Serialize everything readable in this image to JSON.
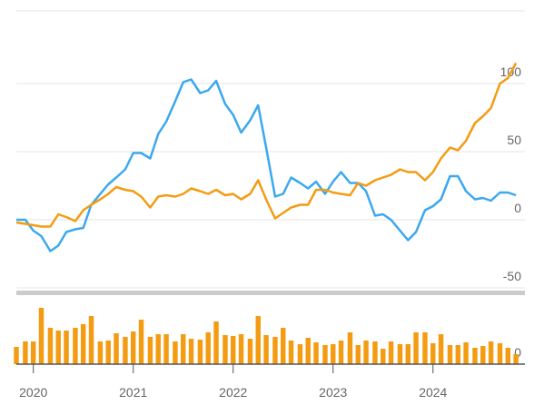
{
  "chart_data": [
    {
      "type": "line",
      "x": [
        2019.83,
        2019.92,
        2020,
        2020.08,
        2020.17,
        2020.25,
        2020.33,
        2020.42,
        2020.5,
        2020.58,
        2020.67,
        2020.75,
        2020.83,
        2020.92,
        2021,
        2021.08,
        2021.17,
        2021.25,
        2021.33,
        2021.42,
        2021.5,
        2021.58,
        2021.67,
        2021.75,
        2021.83,
        2021.92,
        2022,
        2022.08,
        2022.17,
        2022.25,
        2022.33,
        2022.42,
        2022.5,
        2022.58,
        2022.67,
        2022.75,
        2022.83,
        2022.92,
        2023,
        2023.08,
        2023.17,
        2023.25,
        2023.33,
        2023.42,
        2023.5,
        2023.58,
        2023.67,
        2023.75,
        2023.83,
        2023.92,
        2024,
        2024.08,
        2024.17,
        2024.25,
        2024.33,
        2024.42,
        2024.5,
        2024.58,
        2024.67,
        2024.75,
        2024.83
      ],
      "series": [
        {
          "color": "#3ba8f0",
          "values": [
            0,
            0,
            -8,
            -12,
            -23,
            -19,
            -9,
            -7,
            -6,
            11,
            19,
            26,
            31,
            37,
            49,
            49,
            45,
            63,
            72,
            87,
            101,
            103,
            93,
            95,
            102,
            85,
            77,
            64,
            73,
            84,
            53,
            17,
            19,
            31,
            27,
            23,
            28,
            19,
            28,
            35,
            27,
            27,
            21,
            3,
            4,
            0,
            -8,
            -15,
            -9,
            7,
            10,
            15,
            32,
            32,
            21,
            15,
            16,
            14,
            20,
            20,
            18
          ]
        },
        {
          "color": "#f39c12",
          "values": [
            -2,
            -3,
            -4,
            -5,
            -5,
            4,
            2,
            -1,
            7,
            11,
            15,
            19,
            24,
            22,
            21,
            17,
            9,
            17,
            18,
            17,
            19,
            23,
            21,
            19,
            22,
            18,
            19,
            15,
            19,
            29,
            15,
            1,
            5,
            9,
            11,
            11,
            22,
            22,
            20,
            19,
            18,
            27,
            25,
            29,
            31,
            33,
            37,
            35,
            35,
            29,
            35,
            45,
            53,
            51,
            58,
            71,
            76,
            82,
            100,
            104,
            115
          ]
        }
      ],
      "xlim": [
        2019.83,
        2024.92
      ],
      "ylim": [
        -50,
        150
      ],
      "yticks": [
        -50,
        0,
        50,
        100
      ],
      "grid": true
    },
    {
      "type": "bar",
      "x": [
        2019.83,
        2019.92,
        2020,
        2020.08,
        2020.17,
        2020.25,
        2020.33,
        2020.42,
        2020.5,
        2020.58,
        2020.67,
        2020.75,
        2020.83,
        2020.92,
        2021,
        2021.08,
        2021.17,
        2021.25,
        2021.33,
        2021.42,
        2021.5,
        2021.58,
        2021.67,
        2021.75,
        2021.83,
        2021.92,
        2022,
        2022.08,
        2022.17,
        2022.25,
        2022.33,
        2022.42,
        2022.5,
        2022.58,
        2022.67,
        2022.75,
        2022.83,
        2022.92,
        2023,
        2023.08,
        2023.17,
        2023.25,
        2023.33,
        2023.42,
        2023.5,
        2023.58,
        2023.67,
        2023.75,
        2023.83,
        2023.92,
        2024,
        2024.08,
        2024.17,
        2024.25,
        2024.33,
        2024.42,
        2024.5,
        2024.58,
        2024.67,
        2024.75,
        2024.83
      ],
      "values": [
        19,
        25,
        25,
        62,
        40,
        37,
        37,
        40,
        44,
        53,
        25,
        26,
        34,
        30,
        36,
        49,
        30,
        33,
        33,
        25,
        33,
        28,
        27,
        35,
        47,
        32,
        31,
        33,
        28,
        53,
        32,
        30,
        40,
        26,
        22,
        29,
        24,
        21,
        22,
        26,
        35,
        21,
        26,
        25,
        17,
        25,
        22,
        22,
        35,
        35,
        23,
        33,
        21,
        21,
        24,
        18,
        20,
        25,
        23,
        18,
        11
      ],
      "color": "#f39c12",
      "xlim": [
        2019.83,
        2024.92
      ],
      "xticks": [
        2020,
        2021,
        2022,
        2023,
        2024
      ],
      "ylim": [
        0,
        80
      ],
      "yticks": [
        0
      ]
    }
  ]
}
